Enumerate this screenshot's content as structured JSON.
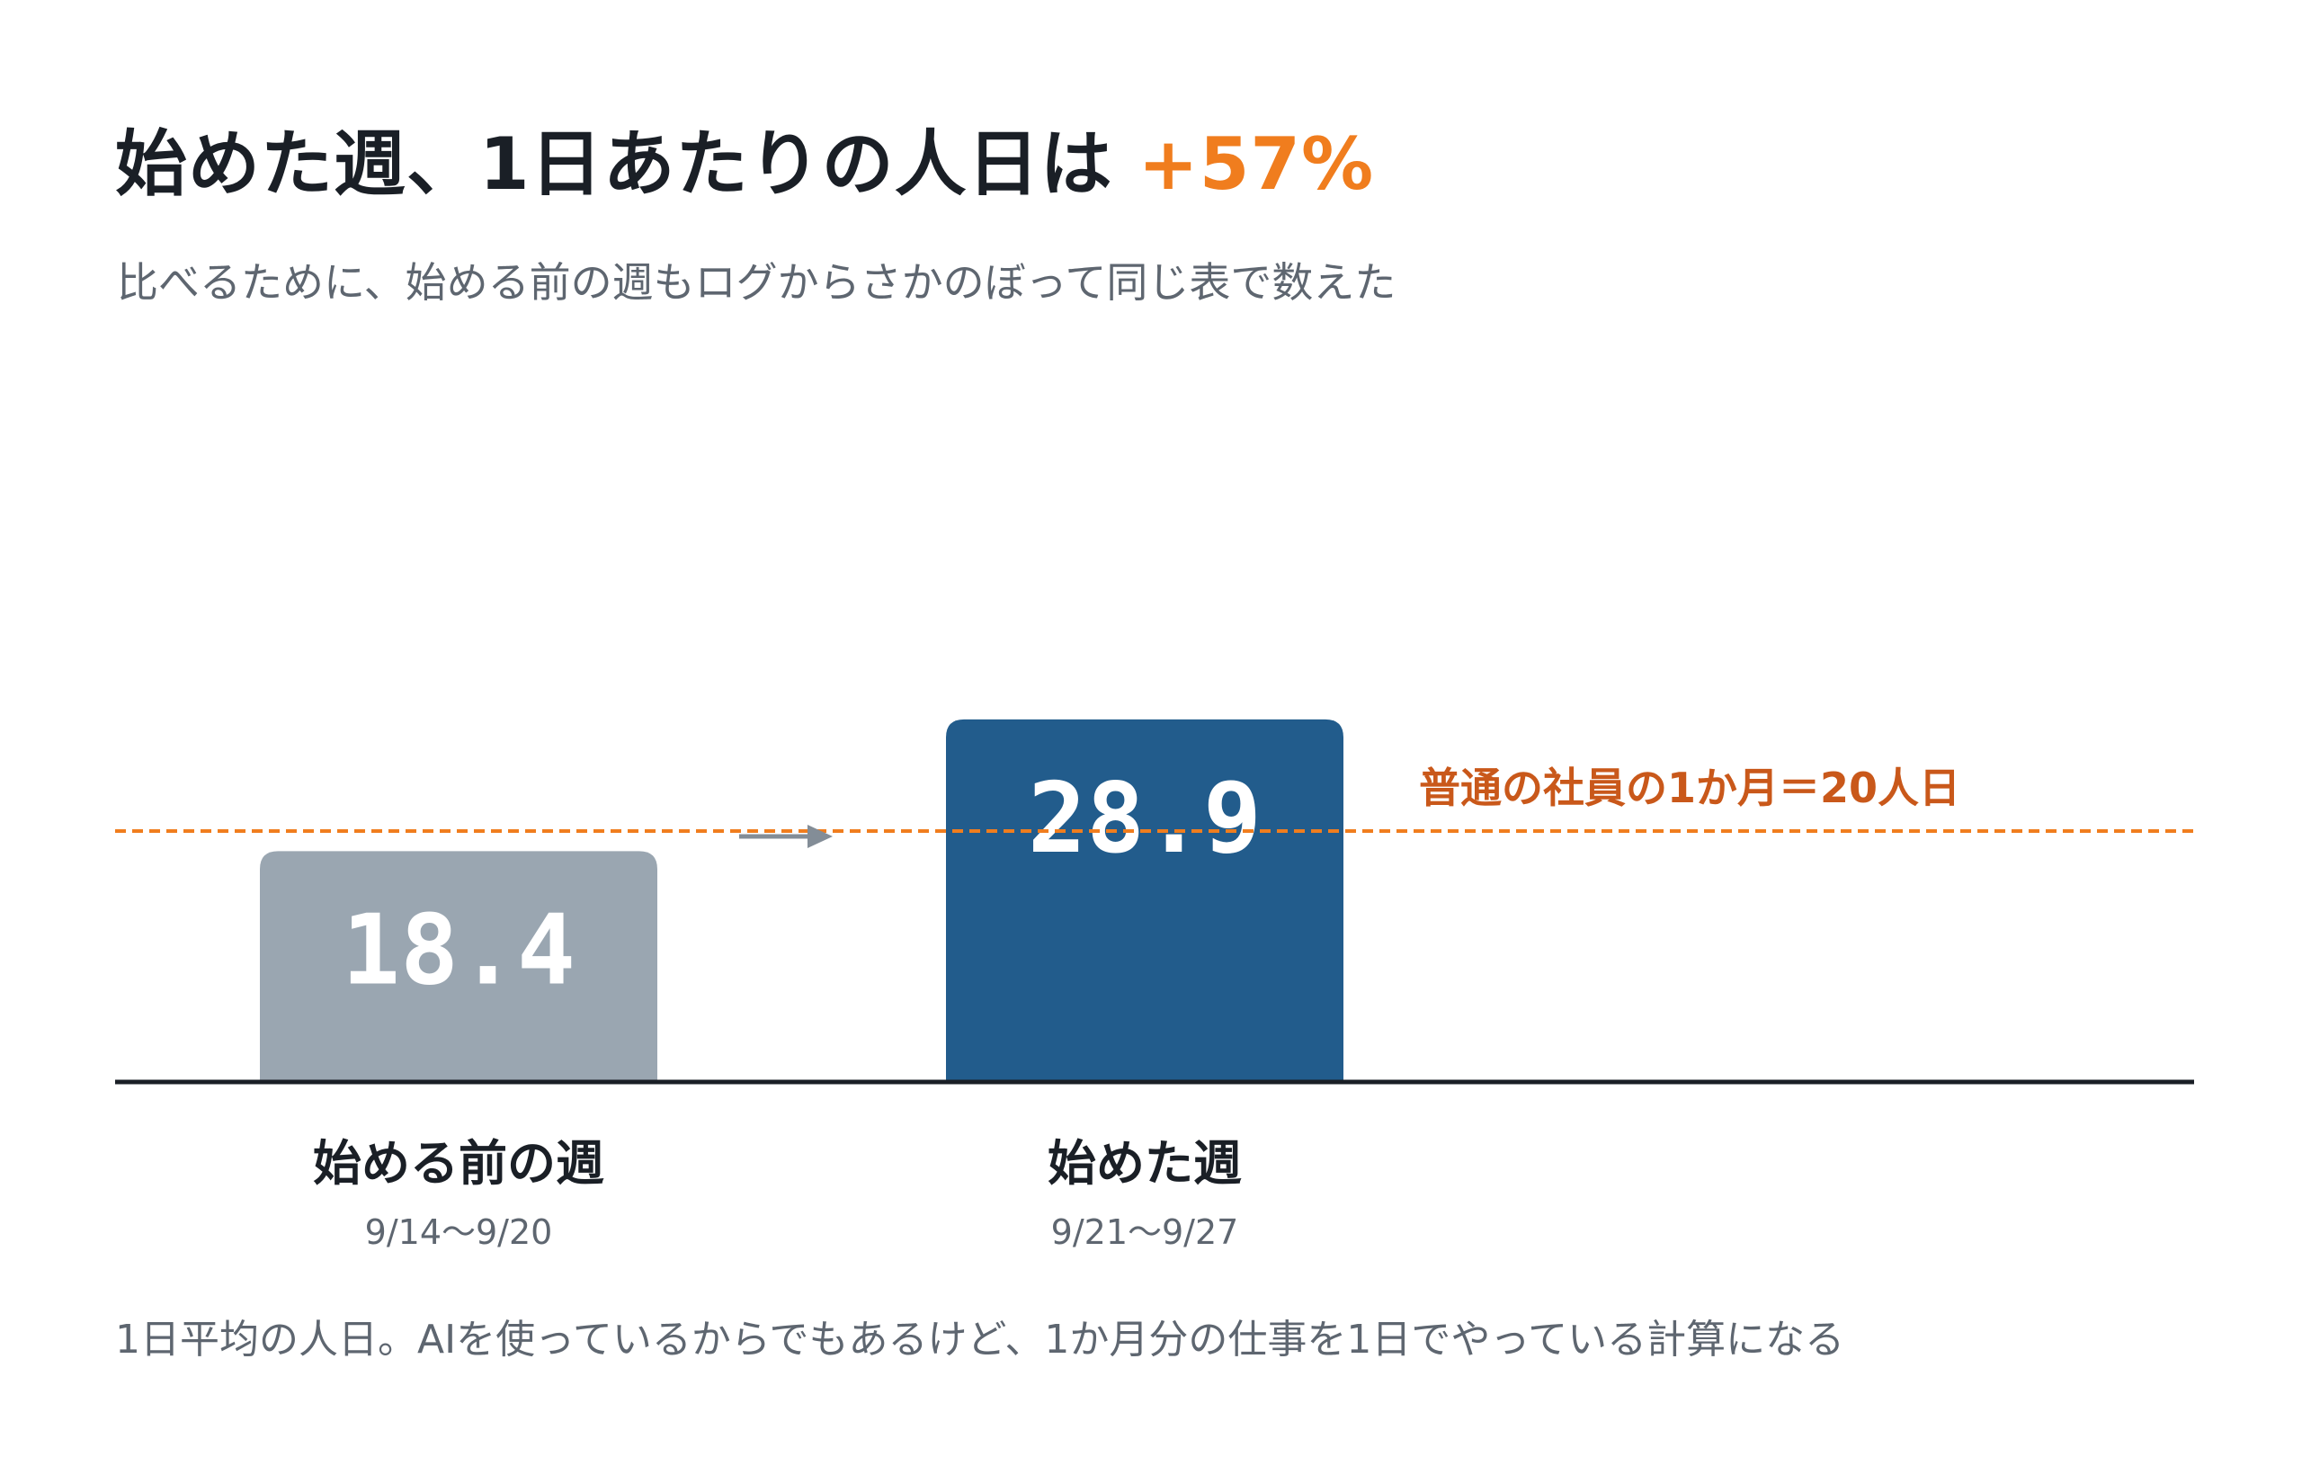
{
  "title": {
    "main": "始めた週、1日あたりの人日は",
    "highlight": "+57%"
  },
  "subtitle": "比べるために、始める前の週もログからさかのぼって同じ表で数えた",
  "footnote": "1日平均の人日。AIを使っているからでもあるけど、1か月分の仕事を1日でやっている計算になる",
  "colors": {
    "bar_before": "#9aa6b1",
    "bar_after": "#225c8c",
    "reference": "#f07d1e",
    "reference_label": "#c9581a",
    "highlight": "#f07d1e",
    "axis": "#1a1f26",
    "arrow": "#838d97"
  },
  "chart_data": {
    "type": "bar",
    "categories": [
      "始める前の週",
      "始めた週"
    ],
    "category_dates": [
      "9/14〜9/20",
      "9/21〜9/27"
    ],
    "values": [
      18.4,
      28.9
    ],
    "value_labels": [
      "18.4",
      "28.9"
    ],
    "ylim": [
      0,
      35
    ],
    "reference_line": {
      "value": 20,
      "label": "普通の社員の1か月＝20人日"
    },
    "arrow_between_bars": true,
    "grid": false,
    "title": "始めた週、1日あたりの人日は +57%",
    "xlabel": "",
    "ylabel": ""
  }
}
